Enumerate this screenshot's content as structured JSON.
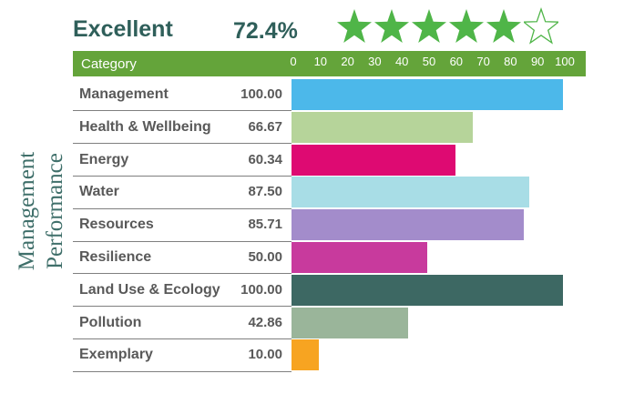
{
  "rating": {
    "label": "Excellent",
    "score": "72.4%",
    "stars_filled": 5,
    "stars_total": 6,
    "star_color": "#4fb548"
  },
  "side_title": {
    "line1": "Management",
    "line2": "Performance",
    "color": "#3f6f6a"
  },
  "chart_data": {
    "type": "bar",
    "orientation": "horizontal",
    "header_label": "Category",
    "xlim": [
      0,
      100
    ],
    "xticks": [
      "0",
      "10",
      "20",
      "30",
      "40",
      "50",
      "60",
      "70",
      "80",
      "90",
      "100"
    ],
    "categories": [
      "Management",
      "Health & Wellbeing",
      "Energy",
      "Water",
      "Resources",
      "Resilience",
      "Land Use & Ecology",
      "Pollution",
      "Exemplary"
    ],
    "values": [
      100.0,
      66.67,
      60.34,
      87.5,
      85.71,
      50.0,
      100.0,
      42.86,
      10.0
    ],
    "value_labels": [
      "100.00",
      "66.67",
      "60.34",
      "87.50",
      "85.71",
      "50.00",
      "100.00",
      "42.86",
      "10.00"
    ],
    "colors": [
      "#4cb8ea",
      "#b6d49a",
      "#de0a72",
      "#a8dde6",
      "#a38ccb",
      "#c83a9d",
      "#3d6863",
      "#9ab59a",
      "#f7a421"
    ],
    "header_color": "#64a43a"
  }
}
